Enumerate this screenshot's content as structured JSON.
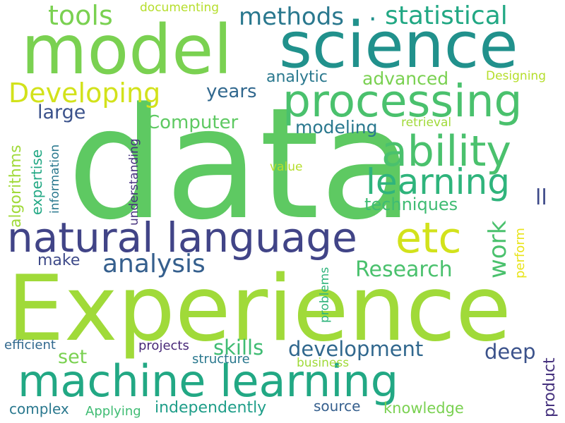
{
  "words": {
    "data": {
      "text": "data",
      "color": "#5ec962"
    },
    "experience": {
      "text": "Experience",
      "color": "#a0da39"
    },
    "model": {
      "text": "model",
      "color": "#7ad151"
    },
    "science": {
      "text": "science",
      "color": "#21918c"
    },
    "processing": {
      "text": "processing",
      "color": "#4ac16d"
    },
    "machine_learning": {
      "text": "machine learning",
      "color": "#22a884"
    },
    "natural_language": {
      "text": "natural language",
      "color": "#414487"
    },
    "ability": {
      "text": "ability",
      "color": "#4ac16d"
    },
    "learning": {
      "text": "learning",
      "color": "#2fb47c"
    },
    "etc": {
      "text": "etc",
      "color": "#d2e21b"
    },
    "developing": {
      "text": "Developing",
      "color": "#d2e21b"
    },
    "statistical": {
      "text": "statistical",
      "color": "#22a884"
    },
    "tools": {
      "text": "tools",
      "color": "#7ad151"
    },
    "methods": {
      "text": "methods",
      "color": "#2a788e"
    },
    "analysis": {
      "text": "analysis",
      "color": "#355f8d"
    },
    "research": {
      "text": "Research",
      "color": "#4ac16d"
    },
    "development": {
      "text": "development",
      "color": "#31688e"
    },
    "documenting": {
      "text": "documenting",
      "color": "#b5de2b"
    },
    "years": {
      "text": "years",
      "color": "#31688e"
    },
    "advanced": {
      "text": "advanced",
      "color": "#7ad151"
    },
    "analytic": {
      "text": "analytic",
      "color": "#2a788e"
    },
    "designing": {
      "text": "Designing",
      "color": "#b5de2b"
    },
    "large": {
      "text": "large",
      "color": "#3b528b"
    },
    "computer": {
      "text": "Computer",
      "color": "#5ec962"
    },
    "modeling": {
      "text": "modeling",
      "color": "#2a788e"
    },
    "retrieval": {
      "text": "retrieval",
      "color": "#a0da39"
    },
    "techniques": {
      "text": "techniques",
      "color": "#3fbc73"
    },
    "ll": {
      "text": "ll",
      "color": "#3e4a89"
    },
    "make": {
      "text": "make",
      "color": "#3e4a89"
    },
    "skills": {
      "text": "skills",
      "color": "#3fbc73"
    },
    "deep": {
      "text": "deep",
      "color": "#3b528b"
    },
    "set": {
      "text": "set",
      "color": "#7ad151"
    },
    "efficient": {
      "text": "efficient",
      "color": "#31688e"
    },
    "projects": {
      "text": "projects",
      "color": "#482878"
    },
    "structure": {
      "text": "structure",
      "color": "#2a788e"
    },
    "business": {
      "text": "business",
      "color": "#a0da39"
    },
    "complex": {
      "text": "complex",
      "color": "#2a788e"
    },
    "applying": {
      "text": "Applying",
      "color": "#3fbc73"
    },
    "independently": {
      "text": "independently",
      "color": "#1f9e89"
    },
    "source": {
      "text": "source",
      "color": "#355f8d"
    },
    "knowledge": {
      "text": "knowledge",
      "color": "#7ad151"
    },
    "value": {
      "text": "value",
      "color": "#b5de2b"
    },
    "algorithms": {
      "text": "algorithms",
      "color": "#a0da39"
    },
    "expertise": {
      "text": "expertise",
      "color": "#22a884"
    },
    "information": {
      "text": "information",
      "color": "#2a788e"
    },
    "understanding": {
      "text": "understanding",
      "color": "#46327e"
    },
    "work": {
      "text": "work",
      "color": "#4ac16d"
    },
    "perform": {
      "text": "perform",
      "color": "#e8e419"
    },
    "problems": {
      "text": "problems",
      "color": "#2fb47c"
    },
    "product": {
      "text": "product",
      "color": "#46327e"
    },
    "dot": {
      "text": ".",
      "color": "#21918c"
    }
  }
}
